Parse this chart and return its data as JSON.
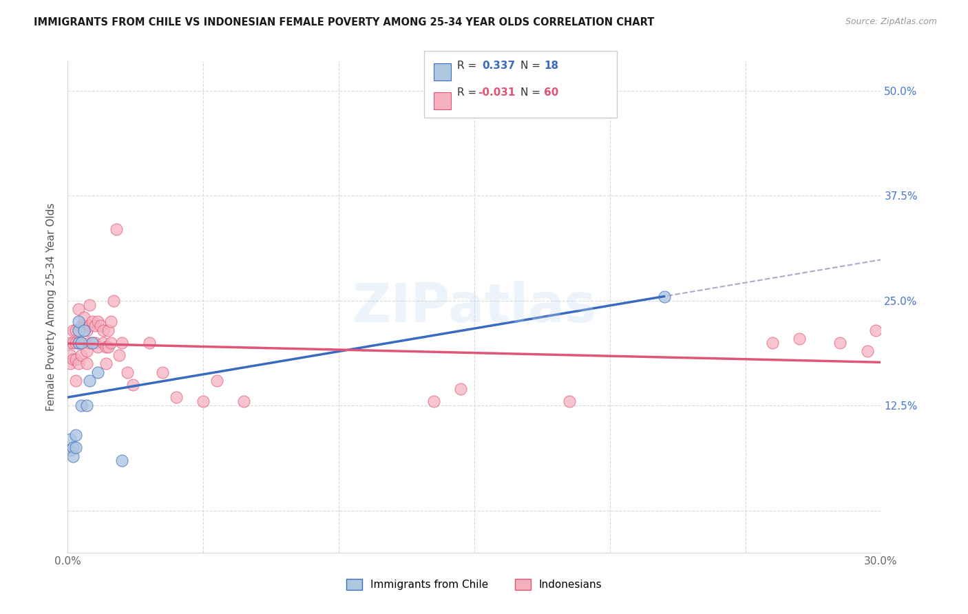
{
  "title": "IMMIGRANTS FROM CHILE VS INDONESIAN FEMALE POVERTY AMONG 25-34 YEAR OLDS CORRELATION CHART",
  "source": "Source: ZipAtlas.com",
  "ylabel": "Female Poverty Among 25-34 Year Olds",
  "right_yticklabels": [
    "",
    "12.5%",
    "25.0%",
    "37.5%",
    "50.0%"
  ],
  "xmin": 0.0,
  "xmax": 0.3,
  "ymin": -0.05,
  "ymax": 0.535,
  "chile_color": "#aec6e0",
  "indonesian_color": "#f5b0c0",
  "chile_line_color": "#3a6bbf",
  "indonesian_line_color": "#e05575",
  "dashed_color": "#aaaacc",
  "background_color": "#ffffff",
  "watermark_text": "ZIPatlas",
  "grid_color": "#d8d8d8",
  "title_color": "#1a1a1a",
  "source_color": "#999999",
  "right_tick_color": "#4477cc",
  "legend_text_color": "#333333",
  "chile_x": [
    0.001,
    0.001,
    0.002,
    0.002,
    0.003,
    0.003,
    0.004,
    0.004,
    0.004,
    0.005,
    0.005,
    0.006,
    0.007,
    0.008,
    0.009,
    0.011,
    0.02,
    0.22
  ],
  "chile_y": [
    0.085,
    0.072,
    0.075,
    0.065,
    0.09,
    0.075,
    0.215,
    0.225,
    0.2,
    0.125,
    0.2,
    0.215,
    0.125,
    0.155,
    0.2,
    0.165,
    0.06,
    0.255
  ],
  "indonesian_x": [
    0.001,
    0.001,
    0.001,
    0.002,
    0.002,
    0.002,
    0.003,
    0.003,
    0.003,
    0.003,
    0.004,
    0.004,
    0.004,
    0.005,
    0.005,
    0.005,
    0.006,
    0.006,
    0.006,
    0.007,
    0.007,
    0.007,
    0.008,
    0.008,
    0.008,
    0.009,
    0.009,
    0.01,
    0.01,
    0.011,
    0.011,
    0.012,
    0.013,
    0.013,
    0.014,
    0.014,
    0.015,
    0.015,
    0.016,
    0.016,
    0.017,
    0.018,
    0.019,
    0.02,
    0.022,
    0.024,
    0.03,
    0.035,
    0.04,
    0.05,
    0.055,
    0.065,
    0.135,
    0.145,
    0.185,
    0.26,
    0.27,
    0.285,
    0.295,
    0.298
  ],
  "indonesian_y": [
    0.185,
    0.175,
    0.2,
    0.215,
    0.2,
    0.18,
    0.215,
    0.2,
    0.18,
    0.155,
    0.24,
    0.2,
    0.175,
    0.22,
    0.2,
    0.185,
    0.22,
    0.215,
    0.23,
    0.215,
    0.19,
    0.175,
    0.245,
    0.22,
    0.2,
    0.225,
    0.2,
    0.22,
    0.2,
    0.225,
    0.195,
    0.22,
    0.2,
    0.215,
    0.195,
    0.175,
    0.215,
    0.195,
    0.225,
    0.2,
    0.25,
    0.335,
    0.185,
    0.2,
    0.165,
    0.15,
    0.2,
    0.165,
    0.135,
    0.13,
    0.155,
    0.13,
    0.13,
    0.145,
    0.13,
    0.2,
    0.205,
    0.2,
    0.19,
    0.215
  ],
  "xticks": [
    0.0,
    0.05,
    0.1,
    0.15,
    0.2,
    0.25,
    0.3
  ],
  "yticks": [
    0.0,
    0.125,
    0.25,
    0.375,
    0.5
  ],
  "legend_entries": [
    {
      "label": "Immigrants from Chile",
      "color": "#aec6e0",
      "edge": "#3a6bbf"
    },
    {
      "label": "Indonesians",
      "color": "#f5b0c0",
      "edge": "#e05575"
    }
  ]
}
